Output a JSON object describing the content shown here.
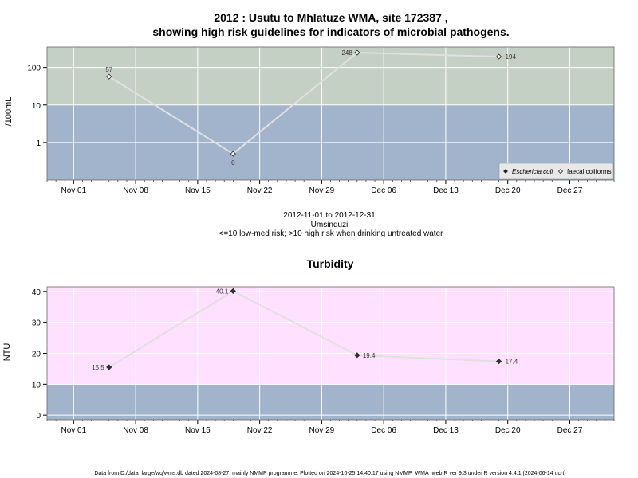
{
  "chart_data": [
    {
      "type": "line",
      "title": "2012 : Usutu to Mhlatuze WMA, site 172387 ,",
      "subtitle": "showing high risk guidelines for indicators of microbial pathogens.",
      "ylabel": "/100mL",
      "y_scale": "log",
      "y_ticks": [
        "1",
        "10",
        "100"
      ],
      "x_ticks": [
        "Nov 01",
        "Nov 08",
        "Nov 15",
        "Nov 22",
        "Nov 29",
        "Dec 06",
        "Dec 13",
        "Dec 20",
        "Dec 27"
      ],
      "x_range": [
        "2012-10-29",
        "2013-01-01"
      ],
      "bands": [
        {
          "from": 0.1,
          "to": 10,
          "color": "#a2b4cc"
        },
        {
          "from": 10,
          "to": 350,
          "color": "#c5d0c4"
        }
      ],
      "series": [
        {
          "name": "Eschericia coli",
          "marker": "filled-diamond",
          "x": [],
          "y": []
        },
        {
          "name": "faecal coliforms",
          "marker": "open-diamond",
          "line_color": "#e0e0e0",
          "x": [
            "2012-11-05",
            "2012-11-19",
            "2012-12-03",
            "2012-12-19"
          ],
          "y": [
            57,
            0.5,
            248,
            194
          ],
          "labels": [
            "57",
            "0",
            "248",
            "194"
          ]
        }
      ],
      "grid": true,
      "legend_position": "bottom-right",
      "caption": [
        "2012-11-01 to 2012-12-31",
        "Umsinduzi",
        "<=10 low-med risk; >10 high risk when drinking untreated water"
      ]
    },
    {
      "type": "line",
      "title": "Turbidity",
      "ylabel": "NTU",
      "ylim": [
        -1.5,
        41.5
      ],
      "y_ticks": [
        0,
        10,
        20,
        30,
        40
      ],
      "x_ticks": [
        "Nov 01",
        "Nov 08",
        "Nov 15",
        "Nov 22",
        "Nov 29",
        "Dec 06",
        "Dec 13",
        "Dec 20",
        "Dec 27"
      ],
      "x_range": [
        "2012-10-29",
        "2013-01-01"
      ],
      "bands": [
        {
          "from": -1.5,
          "to": 10,
          "color": "#a2b4cc"
        },
        {
          "from": 10,
          "to": 41.5,
          "color": "#ffe0ff"
        }
      ],
      "series": [
        {
          "marker": "filled-diamond",
          "line_color": "#e0e0e0",
          "x": [
            "2012-11-05",
            "2012-11-19",
            "2012-12-03",
            "2012-12-19"
          ],
          "y": [
            15.5,
            40.1,
            19.4,
            17.4
          ],
          "labels": [
            "15.5",
            "40.1",
            "19.4",
            "17.4"
          ]
        }
      ],
      "grid": true
    }
  ],
  "footer": "Data from D:/data_large/wq/wms.db dated 2024-08-27, mainly NMMP programme. Plotted on 2024-10-25 14:40:17 using NMMP_WMA_web.R ver 9.3 under R version 4.4.1 (2024-06-14 ucrt)"
}
